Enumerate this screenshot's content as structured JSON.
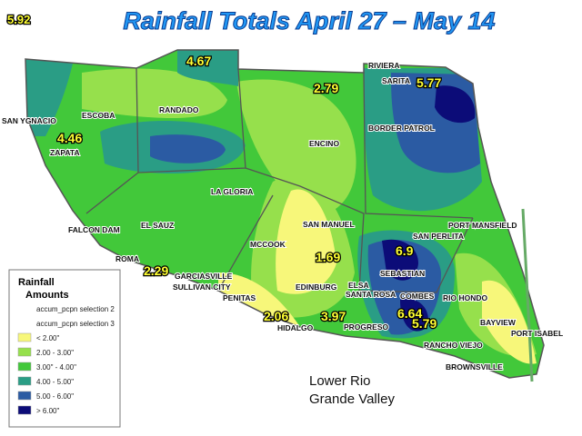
{
  "header": {
    "corner_value": "5.92",
    "title": "Rainfall Totals April 27 – May 14"
  },
  "places": [
    "RIVIERA",
    "SARITA",
    "SAN YGNACIO",
    "ESCOBA",
    "RANDADO",
    "BORDER PATROL",
    "ZAPATA",
    "ENCINO",
    "LA GLORIA",
    "SAN MANUEL",
    "PORT MANSFIELD",
    "FALCON DAM",
    "EL SAUZ",
    "SAN PERLITA",
    "MCCOOK",
    "ROMA",
    "GARCIASVILLE",
    "SULLIVAN CITY",
    "PENITAS",
    "EDINBURG",
    "ELSA",
    "SEBASTIAN",
    "SANTA ROSA",
    "COMBES",
    "RIO HONDO",
    "HIDALGO",
    "PROGRESO",
    "BAYVIEW",
    "PORT ISABEL",
    "RANCHO VIEJO",
    "BROWNSVILLE"
  ],
  "readings": [
    "4.67",
    "2.79",
    "5.77",
    "4.46",
    "2.29",
    "1.69",
    "6.9",
    "2.06",
    "3.97",
    "6.64",
    "5.79"
  ],
  "legend": {
    "title_lines": [
      "Rainfall",
      "Amounts"
    ],
    "items": [
      {
        "label": "accum_pcpn selection 2"
      },
      {
        "label": "accum_pcpn selection 3"
      },
      {
        "label": "< 2.00\"",
        "color": "#f7f77a"
      },
      {
        "label": "2.00 - 3.00\"",
        "color": "#96e04c"
      },
      {
        "label": "3.00\" - 4.00\"",
        "color": "#42c83a"
      },
      {
        "label": "4.00 - 5.00\"",
        "color": "#2a9d85"
      },
      {
        "label": "5.00 - 6.00\"",
        "color": "#2b5ba3"
      },
      {
        "label": "> 6.00\"",
        "color": "#0c0c78"
      }
    ]
  },
  "region_label": [
    "Lower Rio",
    "Grande Valley"
  ]
}
